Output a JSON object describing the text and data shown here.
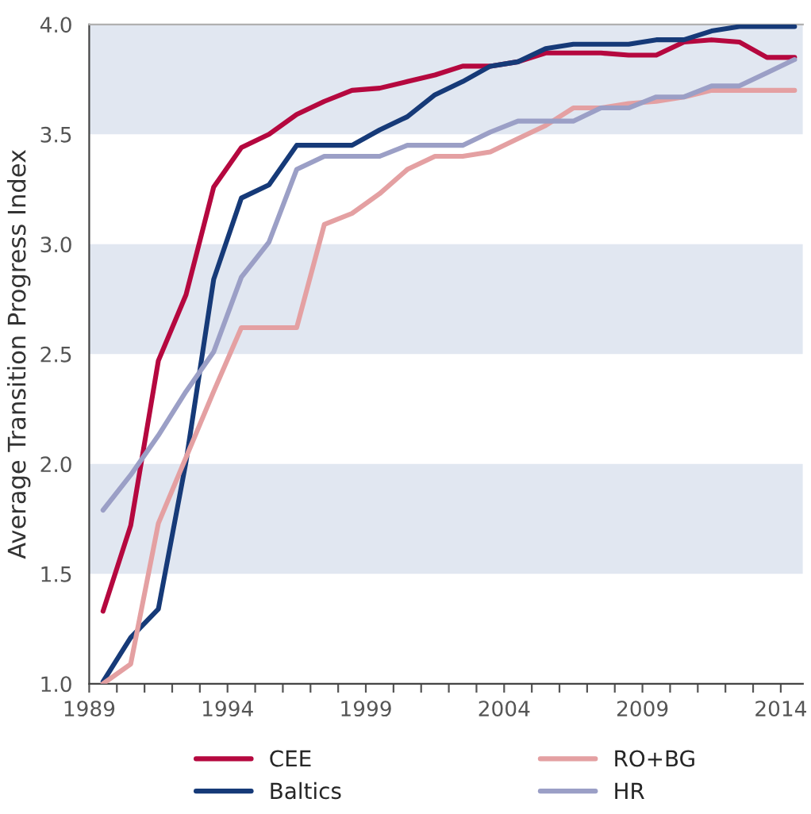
{
  "chart_data": {
    "type": "line",
    "ylabel": "Average Transition Progress Index",
    "x": [
      1989.5,
      1990.5,
      1991.5,
      1992.5,
      1993.5,
      1994.5,
      1995.5,
      1996.5,
      1997.5,
      1998.5,
      1999.5,
      2000.5,
      2001.5,
      2002.5,
      2003.5,
      2004.5,
      2005.5,
      2006.5,
      2007.5,
      2008.5,
      2009.5,
      2010.5,
      2011.5,
      2012.5,
      2013.5,
      2014.5
    ],
    "series": [
      {
        "name": "CEE",
        "color": "#b5083f",
        "values": [
          1.33,
          1.72,
          2.47,
          2.77,
          3.26,
          3.44,
          3.5,
          3.59,
          3.65,
          3.7,
          3.71,
          3.74,
          3.77,
          3.81,
          3.81,
          3.83,
          3.87,
          3.87,
          3.87,
          3.86,
          3.86,
          3.92,
          3.93,
          3.92,
          3.85,
          3.85
        ]
      },
      {
        "name": "Baltics",
        "color": "#163a78",
        "values": [
          1.01,
          1.21,
          1.34,
          2.01,
          2.84,
          3.21,
          3.27,
          3.45,
          3.45,
          3.45,
          3.52,
          3.58,
          3.68,
          3.74,
          3.81,
          3.83,
          3.89,
          3.91,
          3.91,
          3.91,
          3.93,
          3.93,
          3.97,
          3.99,
          3.99,
          3.99
        ]
      },
      {
        "name": "RO+BG",
        "color": "#e4a0a2",
        "values": [
          1.0,
          1.09,
          1.73,
          2.03,
          2.33,
          2.62,
          2.62,
          2.62,
          3.09,
          3.14,
          3.23,
          3.34,
          3.4,
          3.4,
          3.42,
          3.48,
          3.54,
          3.62,
          3.62,
          3.64,
          3.65,
          3.67,
          3.7,
          3.7,
          3.7,
          3.7
        ]
      },
      {
        "name": "HR",
        "color": "#9b9fc6",
        "values": [
          1.79,
          1.95,
          2.13,
          2.33,
          2.51,
          2.85,
          3.01,
          3.34,
          3.4,
          3.4,
          3.4,
          3.45,
          3.45,
          3.45,
          3.51,
          3.56,
          3.56,
          3.56,
          3.62,
          3.62,
          3.67,
          3.67,
          3.72,
          3.72,
          3.78,
          3.84
        ]
      }
    ],
    "xlim": [
      1989,
      2014.8
    ],
    "xticks": [
      1989,
      {
        "value": 1990,
        "label": null
      },
      {
        "value": 1991,
        "label": null
      },
      {
        "value": 1992,
        "label": null
      },
      {
        "value": 1993,
        "label": null
      },
      1994,
      {
        "value": 1995,
        "label": null
      },
      {
        "value": 1996,
        "label": null
      },
      {
        "value": 1997,
        "label": null
      },
      {
        "value": 1998,
        "label": null
      },
      1999,
      {
        "value": 2000,
        "label": null
      },
      {
        "value": 2001,
        "label": null
      },
      {
        "value": 2002,
        "label": null
      },
      {
        "value": 2003,
        "label": null
      },
      2004,
      {
        "value": 2005,
        "label": null
      },
      {
        "value": 2006,
        "label": null
      },
      {
        "value": 2007,
        "label": null
      },
      {
        "value": 2008,
        "label": null
      },
      2009,
      {
        "value": 2010,
        "label": null
      },
      {
        "value": 2011,
        "label": null
      },
      {
        "value": 2012,
        "label": null
      },
      {
        "value": 2013,
        "label": null
      },
      2014
    ],
    "ylim": [
      1.0,
      4.0
    ],
    "yticks": [
      {
        "value": 1.0,
        "label": "1.0"
      },
      {
        "value": 1.5,
        "label": "1.5"
      },
      {
        "value": 2.0,
        "label": "2.0"
      },
      {
        "value": 2.5,
        "label": "2.5"
      },
      {
        "value": 3.0,
        "label": "3.0"
      },
      {
        "value": 3.5,
        "label": "3.5"
      },
      {
        "value": 4.0,
        "label": "4.0"
      }
    ],
    "bands": [
      {
        "axis": "y",
        "from": 1.5,
        "to": 2.0,
        "color": "#e1e7f1"
      },
      {
        "axis": "y",
        "from": 2.5,
        "to": 3.0,
        "color": "#e1e7f1"
      },
      {
        "axis": "y",
        "from": 3.5,
        "to": 4.0,
        "color": "#e1e7f1"
      }
    ],
    "grid": false,
    "legend": "bottom",
    "marker": "none",
    "line_style": "solid"
  }
}
